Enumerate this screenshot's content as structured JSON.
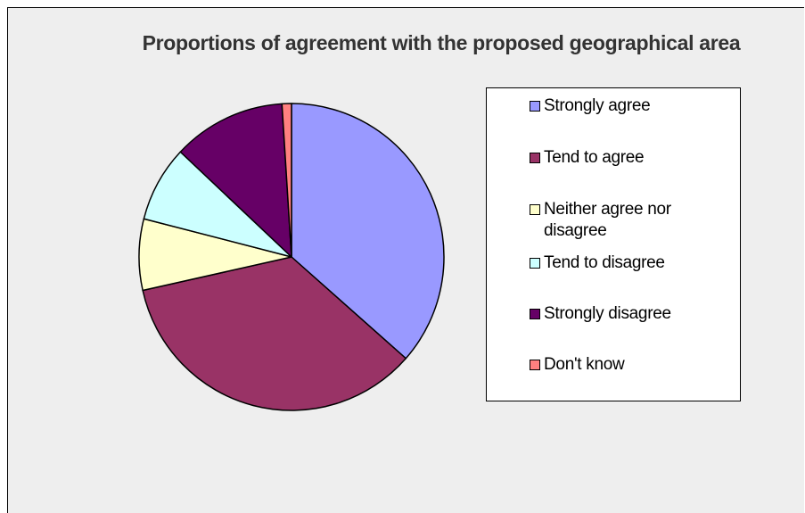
{
  "chart_data": {
    "type": "pie",
    "title": "Proportions of agreement with the proposed geographical area",
    "categories": [
      "Strongly agree",
      "Tend to agree",
      "Neither agree nor disagree",
      "Tend to disagree",
      "Strongly disagree",
      "Don't know"
    ],
    "values": [
      36.5,
      35.0,
      7.5,
      8.0,
      12.0,
      1.0
    ],
    "colors": [
      "#9999ff",
      "#993366",
      "#ffffcc",
      "#ccffff",
      "#660066",
      "#ff8080"
    ],
    "legend_position": "right",
    "start_angle": "12 o'clock, clockwise"
  }
}
